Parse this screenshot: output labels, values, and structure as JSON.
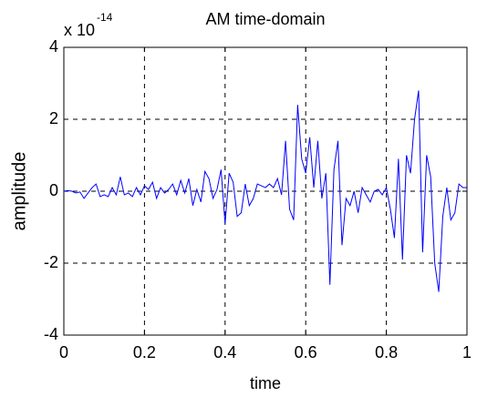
{
  "chart_data": {
    "type": "line",
    "title": "AM time-domain",
    "xlabel": "time",
    "ylabel": "amplitude",
    "y_multiplier": "x 10",
    "y_exponent": "-14",
    "x": [
      0,
      0.01,
      0.02,
      0.03,
      0.04,
      0.05,
      0.06,
      0.07,
      0.08,
      0.09,
      0.1,
      0.11,
      0.12,
      0.13,
      0.14,
      0.15,
      0.16,
      0.17,
      0.18,
      0.19,
      0.2,
      0.21,
      0.22,
      0.23,
      0.24,
      0.25,
      0.26,
      0.27,
      0.28,
      0.29,
      0.3,
      0.31,
      0.32,
      0.33,
      0.34,
      0.35,
      0.36,
      0.37,
      0.38,
      0.39,
      0.4,
      0.41,
      0.42,
      0.43,
      0.44,
      0.45,
      0.46,
      0.47,
      0.48,
      0.49,
      0.5,
      0.51,
      0.52,
      0.53,
      0.54,
      0.55,
      0.56,
      0.57,
      0.58,
      0.59,
      0.6,
      0.61,
      0.62,
      0.63,
      0.64,
      0.65,
      0.66,
      0.67,
      0.68,
      0.69,
      0.7,
      0.71,
      0.72,
      0.73,
      0.74,
      0.75,
      0.76,
      0.77,
      0.78,
      0.79,
      0.8,
      0.81,
      0.82,
      0.83,
      0.84,
      0.85,
      0.86,
      0.87,
      0.88,
      0.89,
      0.9,
      0.91,
      0.92,
      0.93,
      0.94,
      0.95,
      0.96,
      0.97,
      0.98,
      0.99,
      1
    ],
    "values": [
      0,
      0.02,
      0,
      -0.05,
      -0.02,
      -0.2,
      -0.05,
      0.1,
      0.2,
      -0.15,
      -0.1,
      -0.15,
      0.1,
      -0.1,
      0.4,
      -0.1,
      -0.05,
      -0.15,
      0.1,
      -0.1,
      0.15,
      0.05,
      0.25,
      -0.2,
      0.1,
      -0.05,
      0.05,
      0.2,
      -0.1,
      0.3,
      -0.05,
      0.35,
      -0.4,
      0.05,
      -0.3,
      0.55,
      0.35,
      -0.2,
      0.05,
      0.6,
      -0.9,
      0.5,
      0.25,
      -0.7,
      -0.6,
      0.2,
      -0.4,
      -0.2,
      0.2,
      0.15,
      0.1,
      0.2,
      0.1,
      0.35,
      -0.1,
      1.4,
      -0.5,
      -0.8,
      2.4,
      0.9,
      0.5,
      1.5,
      0.1,
      1.4,
      -0.2,
      0.5,
      -2.6,
      0.6,
      1.4,
      -1.5,
      -0.2,
      -0.4,
      0,
      -0.6,
      0.1,
      -0.1,
      -0.3,
      0,
      0.05,
      -0.1,
      0.1,
      -0.5,
      -1.3,
      0.9,
      -1.9,
      1.0,
      0.5,
      2.0,
      2.8,
      -1.7,
      1.0,
      0.4,
      -2.0,
      -2.8,
      -0.7,
      0.1,
      -0.8,
      -0.6,
      0.2,
      0.1,
      0.1
    ],
    "color": "#0000ff",
    "xlim": [
      0,
      1
    ],
    "xticks": [
      0,
      0.2,
      0.4,
      0.6,
      0.8,
      1
    ],
    "ylim": [
      -4,
      4
    ],
    "yticks": [
      -4,
      -2,
      0,
      2,
      4
    ],
    "grid": true
  }
}
